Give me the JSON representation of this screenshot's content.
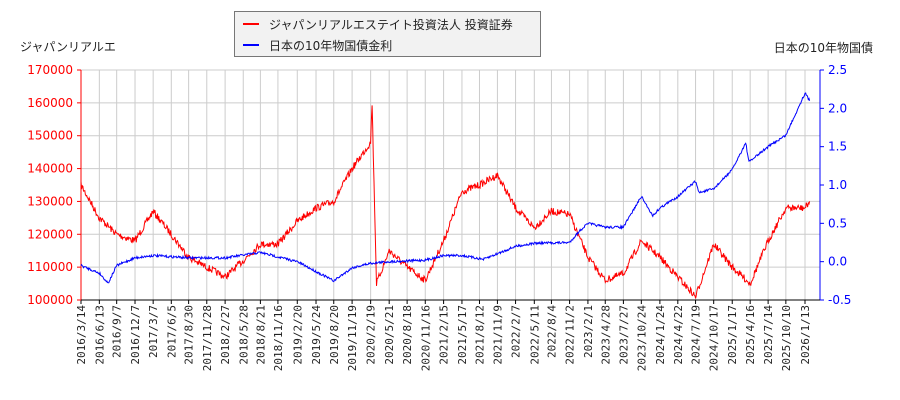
{
  "chart_data": {
    "type": "line",
    "left_axis_title": "ジャパンリアルエ",
    "right_axis_title": "日本の10年物国債",
    "legend": {
      "placement": "top-center",
      "entries": [
        "ジャパンリアルエステイト投資法人 投資証券",
        "日本の10年物国債金利"
      ]
    },
    "grid": true,
    "ylim_left": [
      100000,
      170000
    ],
    "ylim_right": [
      -0.5,
      2.5
    ],
    "yticks_left": [
      "100000",
      "110000",
      "120000",
      "130000",
      "140000",
      "150000",
      "160000",
      "170000"
    ],
    "yticks_right": [
      "-0.5",
      "0.0",
      "0.5",
      "1.0",
      "1.5",
      "2.0",
      "2.5"
    ],
    "xticks": [
      "2016/3/14",
      "2016/6/13",
      "2016/9/7",
      "2016/12/7",
      "2017/3/7",
      "2017/6/5",
      "2017/8/30",
      "2017/11/28",
      "2018/2/27",
      "2018/5/28",
      "2018/8/21",
      "2018/11/16",
      "2019/2/20",
      "2019/5/24",
      "2019/8/20",
      "2019/11/19",
      "2020/2/19",
      "2020/5/21",
      "2020/8/18",
      "2020/11/16",
      "2021/2/15",
      "2021/5/17",
      "2021/8/12",
      "2021/11/9",
      "2022/2/7",
      "2022/5/11",
      "2022/8/4",
      "2022/11/2",
      "2023/2/1",
      "2023/4/28",
      "2023/7/27",
      "2023/10/24",
      "2024/1/24",
      "2024/4/22",
      "2024/7/19",
      "2024/10/17",
      "2025/1/17",
      "2025/4/16",
      "2025/7/14",
      "2025/10/10",
      "2026/1/13"
    ],
    "series": [
      {
        "name": "ジャパンリアルエステイト投資法人 投資証券",
        "axis": "left",
        "color": "#ff0000",
        "x": [
          "2016/3/14",
          "2016/6/13",
          "2016/9/7",
          "2016/12/7",
          "2017/3/7",
          "2017/6/5",
          "2017/8/30",
          "2017/11/28",
          "2018/2/27",
          "2018/5/28",
          "2018/8/21",
          "2018/11/16",
          "2019/2/20",
          "2019/5/24",
          "2019/8/20",
          "2019/11/19",
          "2020/2/19",
          "2020/2/26",
          "2020/3/19",
          "2020/5/21",
          "2020/8/18",
          "2020/11/16",
          "2021/2/15",
          "2021/5/17",
          "2021/8/12",
          "2021/11/9",
          "2022/2/7",
          "2022/5/11",
          "2022/8/4",
          "2022/11/2",
          "2023/2/1",
          "2023/4/28",
          "2023/7/27",
          "2023/10/24",
          "2024/1/24",
          "2024/4/22",
          "2024/7/19",
          "2024/10/17",
          "2025/1/17",
          "2025/4/16",
          "2025/7/14",
          "2025/10/10",
          "2026/1/13",
          "2026/2/5"
        ],
        "y": [
          135000,
          125000,
          120000,
          118000,
          127000,
          120000,
          113000,
          110000,
          107000,
          112000,
          117000,
          117000,
          124000,
          128000,
          130000,
          140000,
          148000,
          160000,
          105000,
          115000,
          110000,
          106000,
          118000,
          133000,
          135000,
          138000,
          128000,
          122000,
          127000,
          126000,
          113000,
          106000,
          108000,
          118000,
          113000,
          107000,
          101000,
          117000,
          110000,
          105000,
          118000,
          128000,
          128000,
          130000
        ]
      },
      {
        "name": "日本の10年物国債金利",
        "axis": "right",
        "color": "#0000ff",
        "x": [
          "2016/3/14",
          "2016/6/13",
          "2016/7/27",
          "2016/9/7",
          "2016/12/7",
          "2017/3/7",
          "2017/8/30",
          "2018/2/27",
          "2018/8/21",
          "2019/2/20",
          "2019/8/20",
          "2019/11/19",
          "2020/2/19",
          "2020/5/21",
          "2020/11/16",
          "2021/2/15",
          "2021/5/17",
          "2021/9/1",
          "2022/2/7",
          "2022/5/11",
          "2022/11/2",
          "2022/12/21",
          "2023/2/1",
          "2023/4/28",
          "2023/7/27",
          "2023/10/24",
          "2023/12/20",
          "2024/1/24",
          "2024/4/22",
          "2024/7/19",
          "2024/8/5",
          "2024/10/17",
          "2025/1/17",
          "2025/3/25",
          "2025/4/10",
          "2025/7/14",
          "2025/10/10",
          "2026/1/13",
          "2026/2/5"
        ],
        "y": [
          -0.05,
          -0.15,
          -0.28,
          -0.05,
          0.05,
          0.08,
          0.05,
          0.05,
          0.12,
          0.0,
          -0.25,
          -0.08,
          -0.02,
          0.0,
          0.02,
          0.08,
          0.08,
          0.03,
          0.2,
          0.24,
          0.25,
          0.4,
          0.5,
          0.45,
          0.45,
          0.85,
          0.6,
          0.7,
          0.85,
          1.05,
          0.9,
          0.95,
          1.2,
          1.55,
          1.3,
          1.5,
          1.65,
          2.2,
          2.1
        ]
      }
    ]
  }
}
